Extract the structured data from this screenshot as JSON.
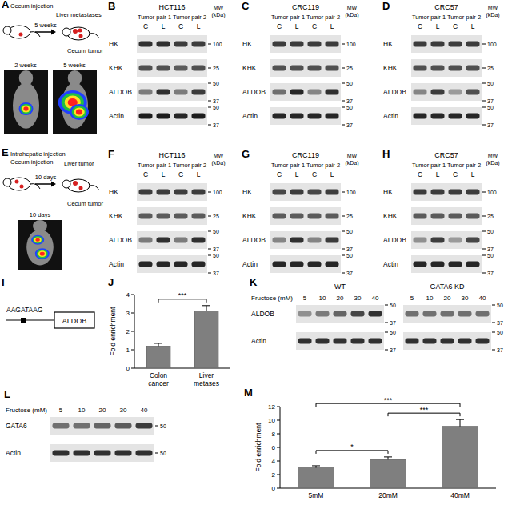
{
  "schematics": [
    {
      "panel": "A",
      "injection": "Cecum injection",
      "arrow": "5 weeks",
      "result": "Liver metastases",
      "tumor": "Cecum tumor",
      "images": [
        "2 weeks",
        "5 weeks"
      ]
    },
    {
      "panel": "E",
      "injection": "Intrahepatic injection",
      "injection2": "Cecum injection",
      "arrow": "10 days",
      "result": "Liver tumor",
      "tumor": "Cecum tumor",
      "images": [
        "10 days"
      ]
    }
  ],
  "blots": [
    {
      "panel": "B",
      "cell": "HCT116",
      "pairs": [
        "Tumor pair 1",
        "Tumor pair 2"
      ],
      "lanes": [
        "C",
        "L",
        "C",
        "L"
      ],
      "mw_title": [
        "MW",
        "(kDa)"
      ],
      "rows": [
        {
          "name": "HK",
          "intensity": [
            0.85,
            0.85,
            0.8,
            0.8
          ],
          "mw": [
            100
          ]
        },
        {
          "name": "KHK",
          "intensity": [
            0.7,
            0.7,
            0.65,
            0.7
          ],
          "mw": [
            25
          ]
        },
        {
          "name": "ALDOB",
          "intensity": [
            0.5,
            0.85,
            0.5,
            0.8
          ],
          "mw": [
            50,
            37
          ]
        },
        {
          "name": "Actin",
          "intensity": [
            0.95,
            0.95,
            0.9,
            0.95
          ],
          "mw": [
            50,
            37
          ]
        }
      ]
    },
    {
      "panel": "C",
      "cell": "CRC119",
      "pairs": [
        "Tumor pair 1",
        "Tumor pair 2"
      ],
      "lanes": [
        "C",
        "L",
        "C",
        "L"
      ],
      "mw_title": [
        "MW",
        "(kDa)"
      ],
      "rows": [
        {
          "name": "HK",
          "intensity": [
            0.8,
            0.8,
            0.8,
            0.8
          ],
          "mw": [
            100
          ]
        },
        {
          "name": "KHK",
          "intensity": [
            0.7,
            0.7,
            0.7,
            0.7
          ],
          "mw": [
            25
          ]
        },
        {
          "name": "ALDOB",
          "intensity": [
            0.55,
            0.9,
            0.45,
            0.85
          ],
          "mw": [
            50,
            37
          ]
        },
        {
          "name": "Actin",
          "intensity": [
            0.9,
            0.9,
            0.9,
            0.9
          ],
          "mw": [
            50,
            37
          ]
        }
      ]
    },
    {
      "panel": "D",
      "cell": "CRC57",
      "pairs": [
        "Tumor pair 1",
        "Tumor pair 2"
      ],
      "lanes": [
        "C",
        "L",
        "C",
        "L"
      ],
      "mw_title": [
        "MW",
        "(kDa)"
      ],
      "rows": [
        {
          "name": "HK",
          "intensity": [
            0.8,
            0.8,
            0.8,
            0.8
          ],
          "mw": [
            100
          ]
        },
        {
          "name": "KHK",
          "intensity": [
            0.7,
            0.7,
            0.7,
            0.7
          ],
          "mw": [
            25
          ]
        },
        {
          "name": "ALDOB",
          "intensity": [
            0.45,
            0.8,
            0.35,
            0.7
          ],
          "mw": [
            50,
            37
          ]
        },
        {
          "name": "Actin",
          "intensity": [
            0.9,
            0.9,
            0.9,
            0.9
          ],
          "mw": [
            50,
            37
          ]
        }
      ]
    },
    {
      "panel": "F",
      "cell": "HCT116",
      "pairs": [
        "Tumor pair 1",
        "Tumor pair 2"
      ],
      "lanes": [
        "C",
        "L",
        "C",
        "L"
      ],
      "mw_title": [
        "MW",
        "(kDa)"
      ],
      "rows": [
        {
          "name": "HK",
          "intensity": [
            0.8,
            0.8,
            0.8,
            0.8
          ],
          "mw": [
            100
          ]
        },
        {
          "name": "KHK",
          "intensity": [
            0.65,
            0.65,
            0.65,
            0.65
          ],
          "mw": [
            25
          ]
        },
        {
          "name": "ALDOB",
          "intensity": [
            0.5,
            0.85,
            0.5,
            0.85
          ],
          "mw": [
            50,
            37
          ]
        },
        {
          "name": "Actin",
          "intensity": [
            0.9,
            0.9,
            0.9,
            0.9
          ],
          "mw": [
            50,
            37
          ]
        }
      ]
    },
    {
      "panel": "G",
      "cell": "CRC119",
      "pairs": [
        "Tumor pair 1",
        "Tumor pair 2"
      ],
      "lanes": [
        "C",
        "L",
        "C",
        "L"
      ],
      "mw_title": [
        "MW",
        "(kDa)"
      ],
      "rows": [
        {
          "name": "HK",
          "intensity": [
            0.75,
            0.8,
            0.75,
            0.8
          ],
          "mw": [
            100
          ]
        },
        {
          "name": "KHK",
          "intensity": [
            0.65,
            0.65,
            0.65,
            0.65
          ],
          "mw": [
            25
          ]
        },
        {
          "name": "ALDOB",
          "intensity": [
            0.45,
            0.85,
            0.45,
            0.8
          ],
          "mw": [
            50,
            37
          ]
        },
        {
          "name": "Actin",
          "intensity": [
            0.9,
            0.9,
            0.9,
            0.9
          ],
          "mw": [
            50,
            37
          ]
        }
      ]
    },
    {
      "panel": "H",
      "cell": "CRC57",
      "pairs": [
        "Tumor pair 1",
        "Tumor pair 2"
      ],
      "lanes": [
        "C",
        "L",
        "C",
        "L"
      ],
      "mw_title": [
        "MW",
        "(kDa)"
      ],
      "rows": [
        {
          "name": "HK",
          "intensity": [
            0.8,
            0.8,
            0.8,
            0.8
          ],
          "mw": [
            100
          ]
        },
        {
          "name": "KHK",
          "intensity": [
            0.65,
            0.65,
            0.65,
            0.65
          ],
          "mw": [
            25
          ]
        },
        {
          "name": "ALDOB",
          "intensity": [
            0.4,
            0.8,
            0.35,
            0.75
          ],
          "mw": [
            50,
            37
          ]
        },
        {
          "name": "Actin",
          "intensity": [
            0.9,
            0.9,
            0.9,
            0.9
          ],
          "mw": [
            50,
            37
          ]
        }
      ]
    }
  ],
  "motif": {
    "panel": "I",
    "sequence": "AAGATAAG",
    "gene": "ALDOB"
  },
  "dose_blots": [
    {
      "panel": "K",
      "axis_title": "Fructose (mM)",
      "rows": [
        "ALDOB",
        "Actin"
      ],
      "groups": [
        {
          "name": "WT",
          "doses": [
            5,
            10,
            20,
            30,
            40
          ],
          "intensity": [
            [
              0.4,
              0.5,
              0.6,
              0.75,
              0.85
            ],
            [
              0.85,
              0.85,
              0.85,
              0.85,
              0.85
            ]
          ],
          "mw": [
            [
              50,
              37
            ],
            [
              50,
              37
            ]
          ]
        },
        {
          "name": "GATA6 KD",
          "doses": [
            5,
            10,
            20,
            30,
            40
          ],
          "intensity": [
            [
              0.55,
              0.55,
              0.55,
              0.55,
              0.55
            ],
            [
              0.85,
              0.85,
              0.85,
              0.85,
              0.85
            ]
          ],
          "mw": [
            [
              50,
              37
            ],
            [
              50,
              37
            ]
          ]
        }
      ]
    },
    {
      "panel": "L",
      "axis_title": "Fructose (mM)",
      "rows": [
        "GATA6",
        "Actin"
      ],
      "groups": [
        {
          "doses": [
            5,
            10,
            20,
            30,
            40
          ],
          "intensity": [
            [
              0.55,
              0.55,
              0.6,
              0.65,
              0.8
            ],
            [
              0.85,
              0.85,
              0.85,
              0.85,
              0.85
            ]
          ],
          "mw": [
            [
              50
            ],
            [
              50
            ]
          ]
        }
      ]
    }
  ],
  "chart_data": [
    {
      "type": "bar",
      "panel": "J",
      "y_label": "Fold enrichment",
      "categories": [
        "Colon cancer",
        "Liver metases"
      ],
      "values": [
        1.2,
        3.1
      ],
      "errors": [
        0.15,
        0.3
      ],
      "color": "#7f7f7f",
      "ylim": [
        0,
        4
      ],
      "yticks": [
        0,
        1,
        2,
        3,
        4
      ],
      "significance": [
        {
          "from": 0,
          "to": 1,
          "label": "***"
        }
      ]
    },
    {
      "type": "bar",
      "panel": "M",
      "y_label": "Fold enrichment",
      "categories": [
        "5mM",
        "20mM",
        "40mM"
      ],
      "values": [
        3.0,
        4.2,
        9.1
      ],
      "errors": [
        0.3,
        0.4,
        1.0
      ],
      "color": "#7f7f7f",
      "ylim": [
        0,
        12
      ],
      "yticks": [
        0,
        2,
        4,
        6,
        8,
        10,
        12
      ],
      "significance": [
        {
          "from": 0,
          "to": 1,
          "label": "*"
        },
        {
          "from": 1,
          "to": 2,
          "label": "***"
        },
        {
          "from": 0,
          "to": 2,
          "label": "***"
        }
      ]
    }
  ]
}
